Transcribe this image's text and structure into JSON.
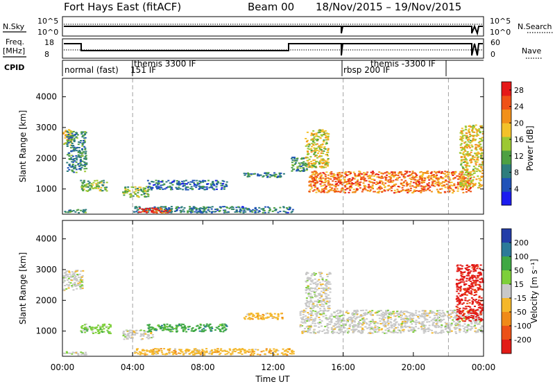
{
  "header": {
    "title": "Fort Hays East (fitACF)",
    "beam": "Beam 00",
    "dates": "18/Nov/2015 – 19/Nov/2015"
  },
  "summary": {
    "nsky": {
      "label": "N.Sky",
      "ticks": [
        "10^5",
        "10^0"
      ]
    },
    "nsearch": {
      "label": "N.Search",
      "ticks": [
        "10^5",
        "10^0"
      ]
    },
    "freq": {
      "label_line1": "Freq.",
      "label_line2": "[MHz]",
      "ticks": [
        "18",
        "8"
      ]
    },
    "nave": {
      "label": "Nave",
      "ticks": [
        "60",
        "0"
      ]
    },
    "cpid": {
      "label": "CPID",
      "modes": [
        {
          "text": "normal (fast)",
          "start": 0.0
        },
        {
          "text": "151 IF",
          "start": 4.0
        },
        {
          "text": "themis 3300 IF",
          "start": 4.0
        },
        {
          "text": "rbsp 200 IF",
          "start": 16.0
        },
        {
          "text": "themis -3300 IF",
          "start": 16.0
        }
      ],
      "dividers_hours": [
        4.0,
        16.0,
        22.0
      ]
    }
  },
  "chart_data": [
    {
      "type": "heatmap",
      "title": "",
      "xlabel": "",
      "ylabel": "Slant Range [km]",
      "xlim_hours": [
        0,
        24
      ],
      "ylim": [
        180,
        4600
      ],
      "yticks": [
        "4000",
        "3000",
        "2000",
        "1000"
      ],
      "ytick_values": [
        4000,
        3000,
        2000,
        1000
      ],
      "dashed_hours": [
        4.0,
        16.0,
        22.0
      ],
      "colorbar": {
        "label": "Power [dB]",
        "ticks": [
          "28",
          "24",
          "20",
          "16",
          "12",
          "8",
          "4"
        ],
        "tick_values": [
          28,
          24,
          20,
          16,
          12,
          8,
          4
        ],
        "range": [
          0,
          30
        ],
        "colors": [
          "#1c1cf0",
          "#1f52b8",
          "#2e7d7d",
          "#4ea042",
          "#9cc833",
          "#f3c12a",
          "#f2901a",
          "#ef5217",
          "#e51919"
        ]
      },
      "regions": [
        {
          "t": [
            0.0,
            0.6
          ],
          "r": [
            2400,
            3000
          ],
          "v": 18
        },
        {
          "t": [
            0.2,
            1.4
          ],
          "r": [
            1500,
            2900
          ],
          "v": 9
        },
        {
          "t": [
            1.0,
            2.6
          ],
          "r": [
            900,
            1300
          ],
          "v": 13
        },
        {
          "t": [
            3.4,
            5.0
          ],
          "r": [
            700,
            1100
          ],
          "v": 14
        },
        {
          "t": [
            4.8,
            9.4
          ],
          "r": [
            950,
            1300
          ],
          "v": 7
        },
        {
          "t": [
            10.3,
            12.7
          ],
          "r": [
            1350,
            1550
          ],
          "v": 9
        },
        {
          "t": [
            13.0,
            14.0
          ],
          "r": [
            1550,
            2050
          ],
          "v": 9
        },
        {
          "t": [
            13.8,
            15.2
          ],
          "r": [
            1650,
            2950
          ],
          "v": 17
        },
        {
          "t": [
            14.0,
            23.3
          ],
          "r": [
            850,
            1600
          ],
          "v": 23
        },
        {
          "t": [
            22.6,
            24.0
          ],
          "r": [
            1000,
            3100
          ],
          "v": 18
        },
        {
          "t": [
            4.0,
            13.2
          ],
          "r": [
            200,
            450
          ],
          "v": 8
        },
        {
          "t": [
            4.3,
            6.2
          ],
          "r": [
            200,
            400
          ],
          "v": 25
        },
        {
          "t": [
            0.0,
            1.4
          ],
          "r": [
            200,
            350
          ],
          "v": 10
        }
      ]
    },
    {
      "type": "heatmap",
      "title": "",
      "xlabel": "Time UT",
      "ylabel": "Slant Range [km]",
      "xlim_hours": [
        0,
        24
      ],
      "ylim": [
        180,
        4600
      ],
      "yticks": [
        "4000",
        "3000",
        "2000",
        "1000"
      ],
      "ytick_values": [
        4000,
        3000,
        2000,
        1000
      ],
      "xticks": [
        "00:00",
        "04:00",
        "08:00",
        "12:00",
        "16:00",
        "20:00",
        "00:00"
      ],
      "xtick_hours": [
        0,
        4,
        8,
        12,
        16,
        20,
        24
      ],
      "dashed_hours": [
        4.0,
        16.0,
        22.0
      ],
      "colorbar": {
        "label": "Velocity [m s⁻¹]",
        "ticks": [
          "200",
          "100",
          "50",
          "15",
          "-15",
          "-50",
          "-100",
          "-200"
        ],
        "colors": [
          "#233da8",
          "#2c7a99",
          "#3fa844",
          "#7dcf3a",
          "#c8c8c8",
          "#f4b72a",
          "#f08a17",
          "#ec5116",
          "#e21b17"
        ]
      },
      "regions": [
        {
          "t": [
            0.0,
            1.2
          ],
          "r": [
            2300,
            3000
          ],
          "c": 4
        },
        {
          "t": [
            1.0,
            2.8
          ],
          "r": [
            900,
            1250
          ],
          "c": 3
        },
        {
          "t": [
            3.4,
            5.2
          ],
          "r": [
            700,
            1050
          ],
          "c": 4
        },
        {
          "t": [
            4.8,
            9.4
          ],
          "r": [
            950,
            1250
          ],
          "c": 2
        },
        {
          "t": [
            10.3,
            12.6
          ],
          "r": [
            1350,
            1600
          ],
          "c": 5
        },
        {
          "t": [
            13.5,
            24.0
          ],
          "r": [
            900,
            1700
          ],
          "c": 4
        },
        {
          "t": [
            13.8,
            15.3
          ],
          "r": [
            1700,
            2950
          ],
          "c": 4
        },
        {
          "t": [
            22.4,
            24.0
          ],
          "r": [
            1300,
            3200
          ],
          "c": 8
        },
        {
          "t": [
            4.0,
            13.2
          ],
          "r": [
            200,
            450
          ],
          "c": 5
        },
        {
          "t": [
            0.0,
            1.4
          ],
          "r": [
            200,
            350
          ],
          "c": 4
        }
      ]
    }
  ]
}
